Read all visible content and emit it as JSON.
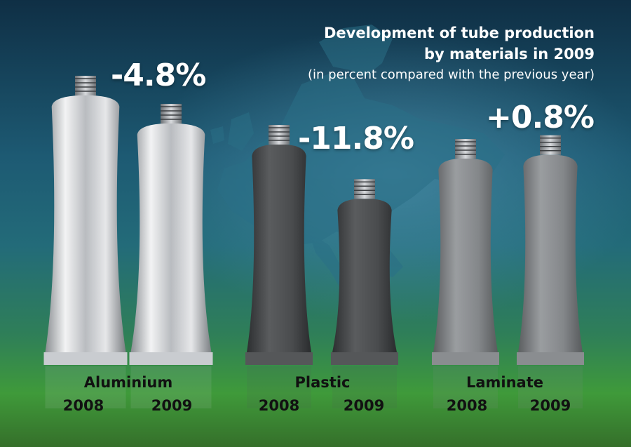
{
  "title": {
    "line1": "Development of tube production",
    "line2": "by materials in 2009",
    "subtitle": "(in percent compared with the previous year)"
  },
  "colors": {
    "aluminium": "#c9ccd0",
    "plastic": "#4a4c4e",
    "laminate": "#7f8284",
    "background_top": "#0f2f45",
    "background_bottom": "#3f9a3a"
  },
  "chart_data": {
    "type": "bar",
    "categories": [
      "Aluminium",
      "Plastic",
      "Laminate"
    ],
    "years": [
      "2008",
      "2009"
    ],
    "changes": [
      {
        "category": "Aluminium",
        "change_percent": -4.8,
        "label": "-4.8%"
      },
      {
        "category": "Plastic",
        "change_percent": -11.8,
        "label": "-11.8%"
      },
      {
        "category": "Laminate",
        "change_percent": 0.8,
        "label": "+0.8%"
      }
    ],
    "relative_levels_2008_eq_1": {
      "Aluminium": [
        1,
        0.952
      ],
      "Plastic": [
        1,
        0.882
      ],
      "Laminate": [
        1,
        1.008
      ]
    },
    "bars_drawn_as": "tubes"
  }
}
